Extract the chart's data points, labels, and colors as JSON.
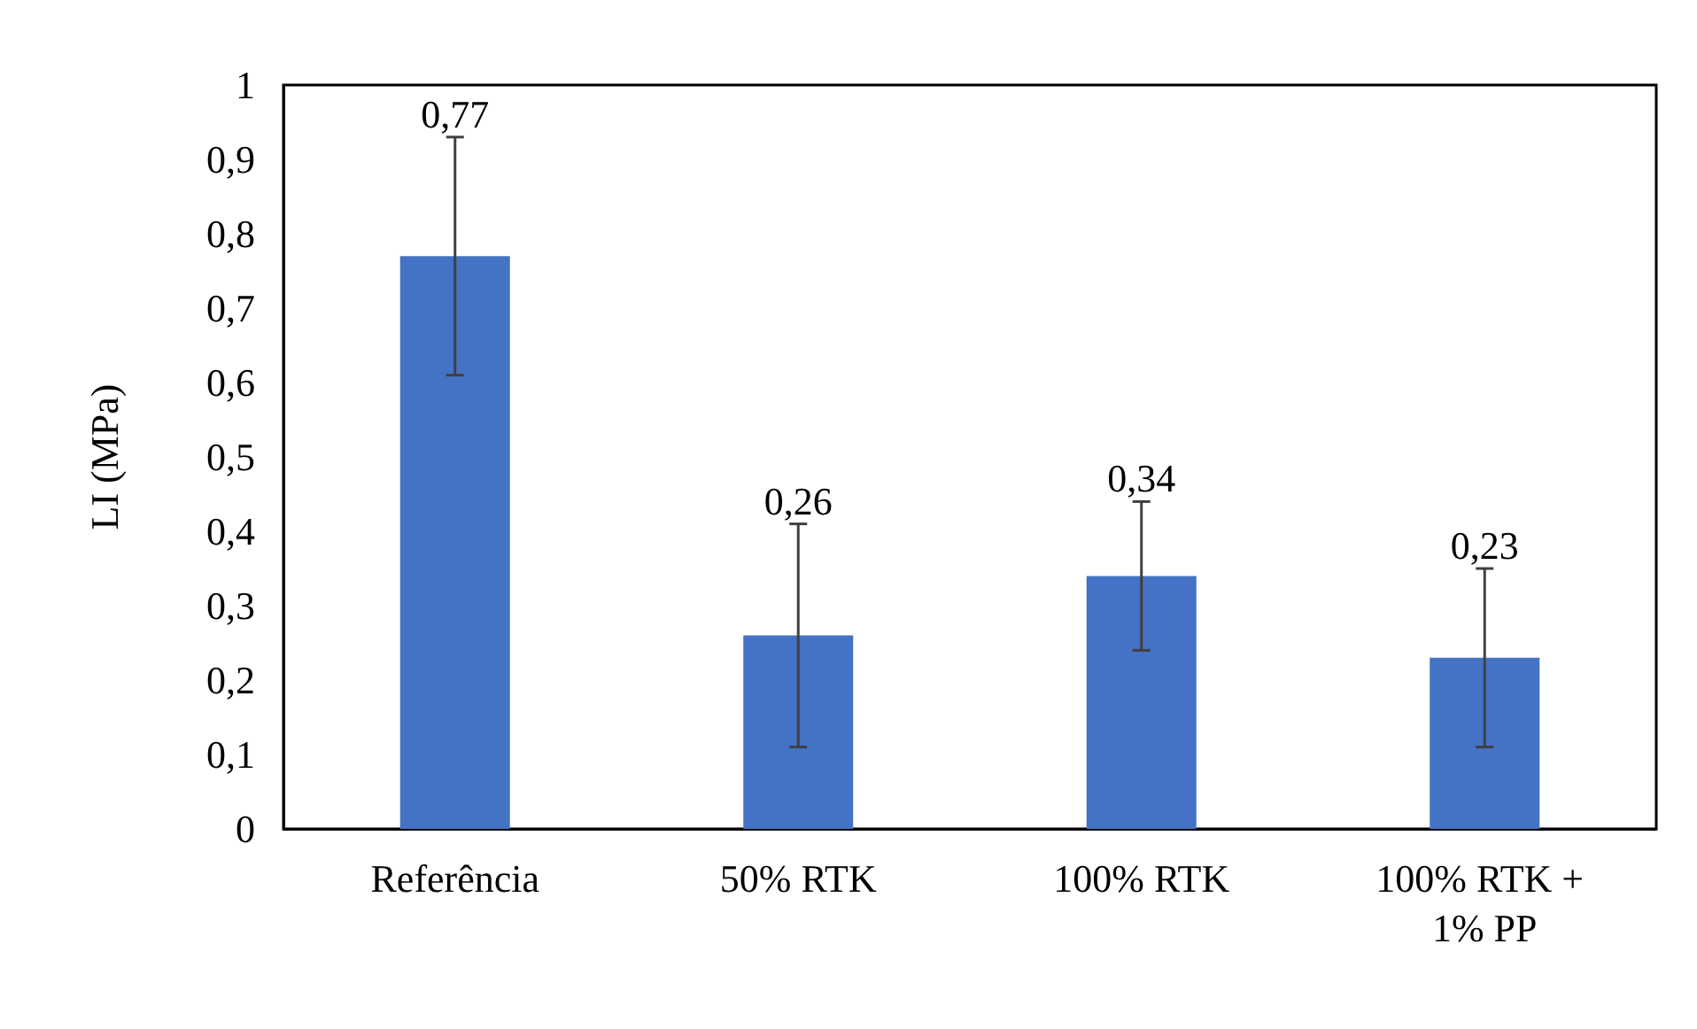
{
  "chart_data": {
    "type": "bar",
    "ylabel": "LI (MPa)",
    "categories": [
      "Referência",
      "50% RTK",
      "100% RTK",
      "100% RTK + 1% PP"
    ],
    "values": [
      0.77,
      0.26,
      0.34,
      0.23
    ],
    "errors": [
      0.16,
      0.15,
      0.1,
      0.12
    ],
    "value_labels": [
      "0,77",
      "0,26",
      "0,34",
      "0,23"
    ],
    "color": "#4472c4",
    "ylim": [
      0,
      1
    ],
    "yticks": [
      0,
      {
        "value": 0.1,
        "label": "0,1"
      },
      {
        "value": 0.2,
        "label": "0,2"
      },
      {
        "value": 0.3,
        "label": "0,3"
      },
      {
        "value": 0.4,
        "label": "0,4"
      },
      {
        "value": 0.5,
        "label": "0,5"
      },
      {
        "value": 0.6,
        "label": "0,6"
      },
      {
        "value": 0.7,
        "label": "0,7"
      },
      {
        "value": 0.8,
        "label": "0,8"
      },
      {
        "value": 0.9,
        "label": "0,9"
      },
      1
    ],
    "grid": false
  }
}
